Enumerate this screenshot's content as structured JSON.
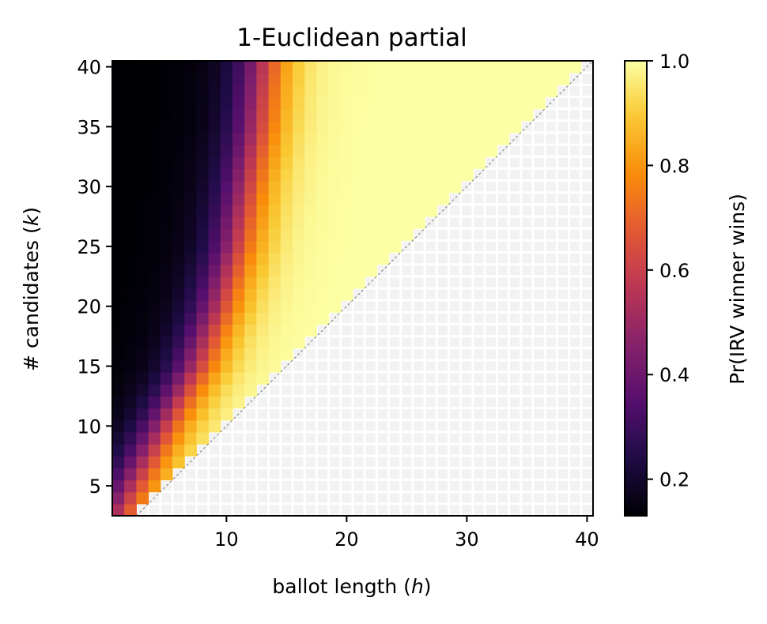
{
  "chart_data": {
    "type": "heatmap",
    "title": "1-Euclidean partial",
    "xlabel_text": "ballot length (",
    "xlabel_var": "h",
    "xlabel_close": ")",
    "ylabel_text": "# candidates (",
    "ylabel_var": "k",
    "ylabel_close": ")",
    "x_range": [
      1,
      40
    ],
    "y_range": [
      3,
      40
    ],
    "x_ticks": [
      10,
      20,
      30,
      40
    ],
    "y_ticks": [
      5,
      10,
      15,
      20,
      25,
      30,
      35,
      40
    ],
    "cell_rule": "defined where ballot length h < number of candidates k; cells with h >= k are empty (white grid)",
    "value_model": {
      "description": "approximate Pr(IRV winner wins) per (h, k); value rises with h and falls with k",
      "midpoint_h_at_k": [
        [
          3,
          1.2
        ],
        [
          10,
          4.8
        ],
        [
          15,
          7.5
        ],
        [
          20,
          9.3
        ],
        [
          25,
          10.7
        ],
        [
          30,
          11.6
        ],
        [
          35,
          12.5
        ],
        [
          40,
          13.0
        ]
      ],
      "transition_width_h": 3.2,
      "min_value": 0.13,
      "max_value": 1.0
    },
    "colorbar": {
      "label": "Pr(IRV winner wins)",
      "colormap": "inferno",
      "range": [
        0.13,
        1.0
      ],
      "ticks": [
        0.2,
        0.4,
        0.6,
        0.8,
        1.0
      ],
      "tick_labels": [
        "0.2",
        "0.4",
        "0.6",
        "0.8",
        "1.0"
      ]
    },
    "diagonal_line": "dashed gray line along h = k",
    "grid": false,
    "empty_cell_color": "#f2f2f2"
  }
}
